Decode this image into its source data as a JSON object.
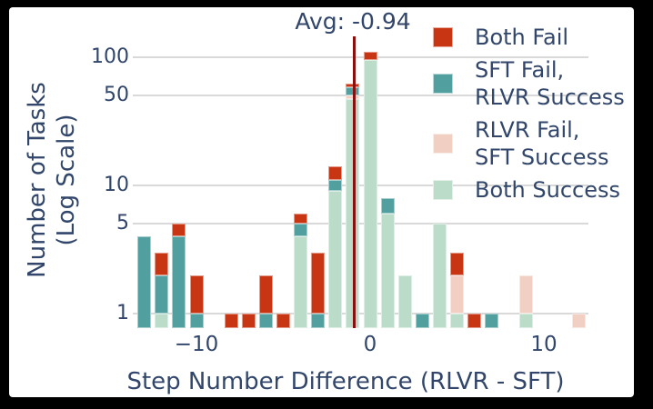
{
  "page": {
    "background": "#000000",
    "canvas_background": "#ffffff",
    "text_color": "#31466a",
    "gridline_color": "#d9d9d9"
  },
  "chart_data": {
    "type": "bar",
    "stacked": true,
    "annotation": "Avg: -0.94",
    "avg_line": {
      "value": -0.94,
      "color": "#8b0f0f"
    },
    "xlabel": "Step Number Difference (RLVR - SFT)",
    "ylabel": "Number of Tasks\n(Log Scale)",
    "yscale": "log",
    "grid": true,
    "legend_position": "upper right",
    "xlim": [
      -13.7,
      12.7
    ],
    "ylim": [
      0.77,
      160
    ],
    "yticks": [
      {
        "value": 1,
        "label": "1"
      },
      {
        "value": 5,
        "label": "5"
      },
      {
        "value": 10,
        "label": "10"
      },
      {
        "value": 50,
        "label": "50"
      },
      {
        "value": 100,
        "label": "100"
      }
    ],
    "xticks": [
      {
        "value": -10,
        "label": "−10"
      },
      {
        "value": 0,
        "label": "0"
      },
      {
        "value": 10,
        "label": "10"
      }
    ],
    "legend": [
      {
        "key": "both_fail",
        "label": "Both Fail",
        "color": "#c83512"
      },
      {
        "key": "sft_fail_rlvr_success",
        "label": "SFT Fail,\nRLVR Success",
        "color": "#519f9f"
      },
      {
        "key": "rlvr_fail_sft_success",
        "label": "RLVR Fail,\nSFT Success",
        "color": "#f2cfc3"
      },
      {
        "key": "both_success",
        "label": "Both Success",
        "color": "#badcc8"
      }
    ],
    "stack_order": [
      "both_success",
      "rlvr_fail_sft_success",
      "sft_fail_rlvr_success",
      "both_fail"
    ],
    "bars": [
      {
        "x": -13,
        "values": [
          0,
          0,
          4,
          0
        ]
      },
      {
        "x": -12,
        "values": [
          1,
          0,
          1,
          1
        ]
      },
      {
        "x": -11,
        "values": [
          0,
          0,
          4,
          1
        ]
      },
      {
        "x": -10,
        "values": [
          0,
          0,
          1,
          1
        ]
      },
      {
        "x": -8,
        "values": [
          0,
          0,
          0,
          1
        ]
      },
      {
        "x": -7,
        "values": [
          0,
          0,
          0,
          1
        ]
      },
      {
        "x": -6,
        "values": [
          0,
          0,
          1,
          1
        ]
      },
      {
        "x": -5,
        "values": [
          0,
          0,
          0,
          1
        ]
      },
      {
        "x": -4,
        "values": [
          4,
          0,
          1,
          1
        ]
      },
      {
        "x": -3,
        "values": [
          0,
          0,
          1,
          2
        ]
      },
      {
        "x": -2,
        "values": [
          9,
          0,
          2,
          3
        ]
      },
      {
        "x": -1,
        "values": [
          47,
          3,
          8,
          4
        ]
      },
      {
        "x": 0,
        "values": [
          95,
          0,
          0,
          16
        ]
      },
      {
        "x": 1,
        "values": [
          6,
          0,
          2,
          0
        ]
      },
      {
        "x": 2,
        "values": [
          2,
          0,
          0,
          0
        ]
      },
      {
        "x": 3,
        "values": [
          0,
          0,
          1,
          0
        ]
      },
      {
        "x": 4,
        "values": [
          5,
          0,
          0,
          0
        ]
      },
      {
        "x": 5,
        "values": [
          1,
          1,
          0,
          1
        ]
      },
      {
        "x": 6,
        "values": [
          0,
          0,
          0,
          1
        ]
      },
      {
        "x": 7,
        "values": [
          0,
          0,
          1,
          0
        ]
      },
      {
        "x": 9,
        "values": [
          1,
          1,
          0,
          0
        ]
      },
      {
        "x": 12,
        "values": [
          0,
          1,
          0,
          0
        ]
      }
    ]
  }
}
